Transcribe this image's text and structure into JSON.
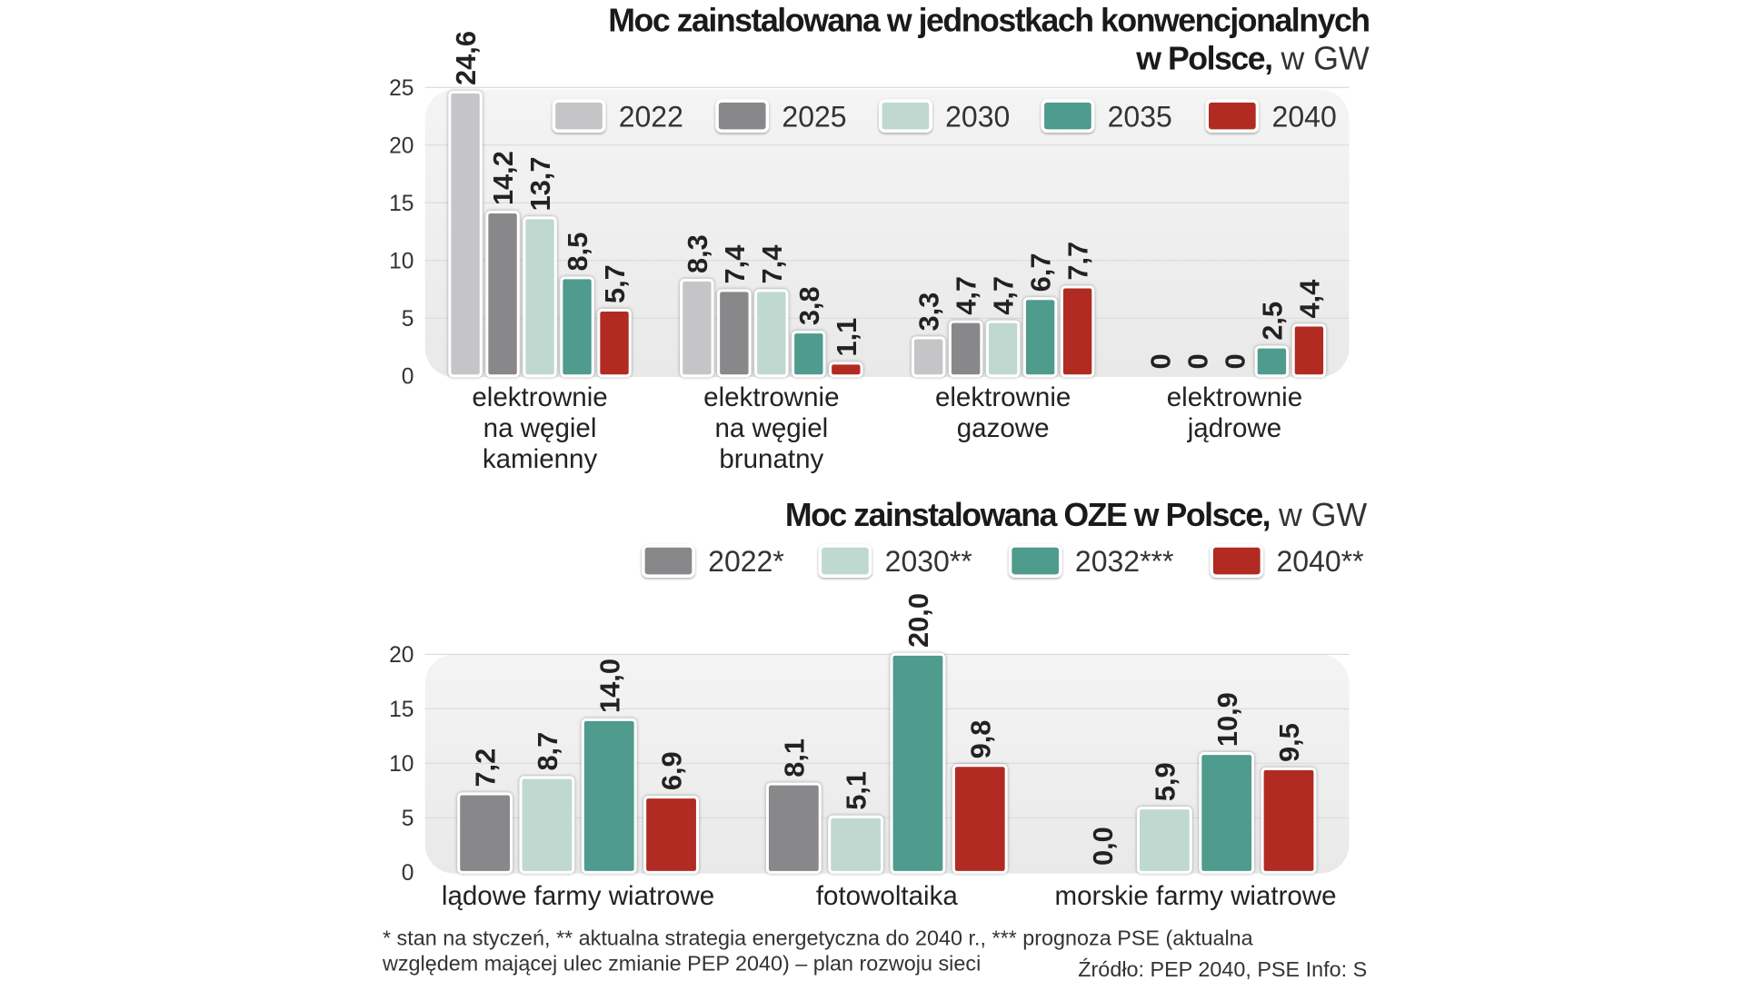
{
  "colors": {
    "2022": "#c5c5c7",
    "2025": "#88888a",
    "2030": "#bfd9d1",
    "2035": "#4f9b8d",
    "2040": "#b12b23",
    "plot_bg": "#efefef",
    "grid": "#dcdcdc"
  },
  "chart_data": [
    {
      "type": "bar",
      "title": "Moc zainstalowana w jednostkach konwencjonalnych",
      "title_line2": "w Polsce,",
      "unit": " w GW",
      "categories": [
        [
          "elektrownie",
          "na węgiel",
          "kamienny"
        ],
        [
          "elektrownie",
          "na węgiel",
          "brunatny"
        ],
        [
          "elektrownie",
          "gazowe"
        ],
        [
          "elektrownie",
          "jądrowe"
        ]
      ],
      "series": [
        {
          "name": "2022",
          "color_key": "2022",
          "values": [
            24.6,
            8.3,
            3.3,
            0
          ],
          "labels": [
            "24,6",
            "8,3",
            "3,3",
            "0"
          ]
        },
        {
          "name": "2025",
          "color_key": "2025",
          "values": [
            14.2,
            7.4,
            4.7,
            0
          ],
          "labels": [
            "14,2",
            "7,4",
            "4,7",
            "0"
          ]
        },
        {
          "name": "2030",
          "color_key": "2030",
          "values": [
            13.7,
            7.4,
            4.7,
            0
          ],
          "labels": [
            "13,7",
            "7,4",
            "4,7",
            "0"
          ]
        },
        {
          "name": "2035",
          "color_key": "2035",
          "values": [
            8.5,
            3.8,
            6.7,
            2.5
          ],
          "labels": [
            "8,5",
            "3,8",
            "6,7",
            "2,5"
          ]
        },
        {
          "name": "2040",
          "color_key": "2040",
          "values": [
            5.7,
            1.1,
            7.7,
            4.4
          ],
          "labels": [
            "5,7",
            "1,1",
            "7,7",
            "4,4"
          ]
        }
      ],
      "yticks": [
        "0",
        "5",
        "10",
        "15",
        "20",
        "25"
      ],
      "ylim": [
        0,
        25
      ],
      "grid": true,
      "legend": "top"
    },
    {
      "type": "bar",
      "title": "Moc zainstalowana OZE w Polsce,",
      "unit": " w GW",
      "categories": [
        [
          "lądowe farmy wiatrowe"
        ],
        [
          "fotowoltaika"
        ],
        [
          "morskie farmy wiatrowe"
        ]
      ],
      "series": [
        {
          "name": "2022*",
          "color_key": "2025",
          "values": [
            7.2,
            8.1,
            0
          ],
          "labels": [
            "7,2",
            "8,1",
            "0,0"
          ]
        },
        {
          "name": "2030**",
          "color_key": "2030",
          "values": [
            8.7,
            5.1,
            5.9
          ],
          "labels": [
            "8,7",
            "5,1",
            "5,9"
          ]
        },
        {
          "name": "2032***",
          "color_key": "2035",
          "values": [
            14.0,
            20.0,
            10.9
          ],
          "labels": [
            "14,0",
            "20,0",
            "10,9"
          ]
        },
        {
          "name": "2040**",
          "color_key": "2040",
          "values": [
            6.9,
            9.8,
            9.5
          ],
          "labels": [
            "6,9",
            "9,8",
            "9,5"
          ]
        }
      ],
      "yticks": [
        "0",
        "5",
        "10",
        "15",
        "20"
      ],
      "ylim": [
        0,
        20
      ],
      "grid": true,
      "legend": "top"
    }
  ],
  "footnote": [
    "* stan na styczeń, ** aktualna strategia energetyczna do 2040 r., *** prognoza PSE (aktualna",
    "względem mającej ulec zmianie PEP 2040) – plan rozwoju sieci"
  ],
  "source": "Źródło: PEP 2040, PSE  Info: S"
}
